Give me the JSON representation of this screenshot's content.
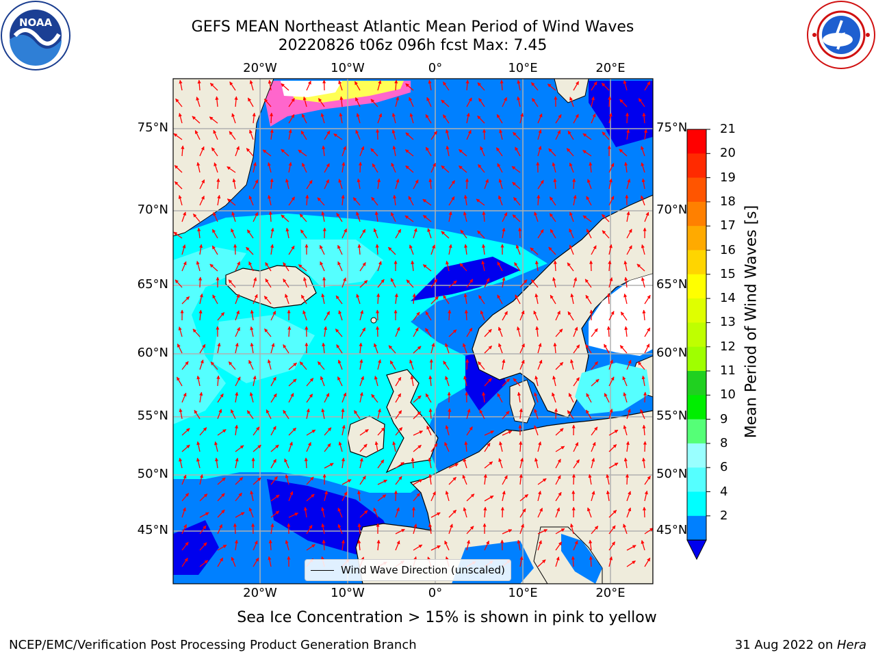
{
  "title": {
    "line1": "GEFS MEAN Northeast Atlantic Mean Period of Wind Waves",
    "line2": "20220826 t06z 096h fcst   Max: 7.45"
  },
  "logos": {
    "left": {
      "icon": "noaa-logo",
      "text": "NOAA",
      "ring_text": "NATIONAL OCEANIC AND ATMOSPHERIC ADMINISTRATION · U.S. DEPARTMENT OF COMMERCE"
    },
    "right": {
      "icon": "nws-logo",
      "ring_text": "NATIONAL WEATHER SERVICE"
    }
  },
  "map": {
    "lon_labels": [
      "20°W",
      "10°W",
      "0°",
      "10°E",
      "20°E"
    ],
    "lat_labels": [
      "75°N",
      "70°N",
      "65°N",
      "60°N",
      "55°N",
      "50°N",
      "45°N"
    ],
    "legend_label": "Wind Wave Direction (unscaled)",
    "colors": {
      "land": "#efecdc",
      "ice_free_no_data": "#ffffff",
      "arrow": "#ff0000",
      "grid": "#b0b0b0",
      "coast": "#000000"
    }
  },
  "colorbar": {
    "label": "Mean Period of Wind Waves [s]",
    "ticks": [
      "21",
      "20",
      "19",
      "18",
      "17",
      "16",
      "15",
      "14",
      "13",
      "12",
      "11",
      "10",
      "9",
      "8",
      "6",
      "4",
      "2"
    ],
    "colors": [
      "#ff0000",
      "#ff2a00",
      "#ff5500",
      "#ff8000",
      "#ffaa00",
      "#ffd500",
      "#ffff00",
      "#dfff00",
      "#bfff00",
      "#9fff00",
      "#20d020",
      "#00ee00",
      "#55ff77",
      "#99ffff",
      "#55ffff",
      "#00ffff",
      "#0080ff"
    ],
    "under_color": "#0000ee",
    "extend": "min"
  },
  "footnote": "Sea Ice Concentration > 15% is shown in pink to yellow",
  "credit_left": "NCEP/EMC/Verification Post Processing Product Generation Branch",
  "credit_date": "31 Aug 2022 on ",
  "credit_host": "Hera"
}
